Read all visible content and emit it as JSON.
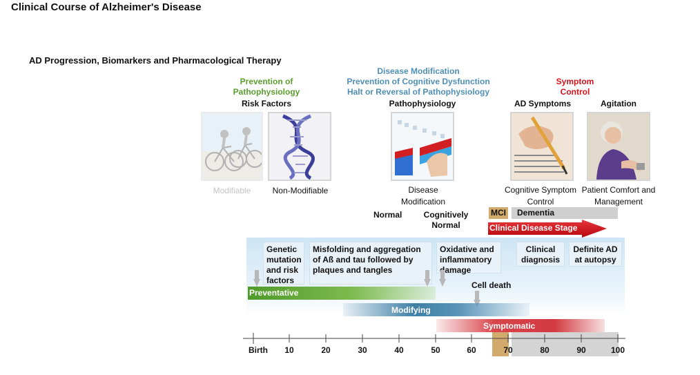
{
  "title": "Clinical Course of Alzheimer's Disease",
  "subtitle": "AD Progression, Biomarkers and Pharmacological Therapy",
  "colors": {
    "green": "#5a9e2f",
    "blue": "#4f8fb5",
    "red": "#d0121b",
    "mci": "#d2aa6c",
    "gray": "#cfcfcf"
  },
  "goals": {
    "prevention": "Prevention of Pathophysiology",
    "modification": [
      "Disease Modification",
      "Prevention of Cognitive Dysfunction",
      "Halt or Reversal of Pathophysiology"
    ],
    "symptom": "Symptom Control"
  },
  "headers": {
    "risk_factors": "Risk Factors",
    "pathophysiology": "Pathophysiology",
    "ad_symptoms": "AD Symptoms",
    "agitation": "Agitation"
  },
  "captions": {
    "modifiable": "Modifiable",
    "non_modifiable": "Non-Modifiable",
    "disease_modification": "Disease Modification",
    "cognitive_symptom_control": "Cognitive Symptom Control",
    "patient_comfort": "Patient Comfort and Management"
  },
  "images": {
    "cyclists": "cyclists-photo",
    "dna": "dna-helix-image",
    "lab": "lab-test-tubes-photo",
    "writing": "hand-writing-photo",
    "elderly": "elderly-woman-photo"
  },
  "stages": {
    "normal": "Normal",
    "cognitively_normal": "Cognitively Normal",
    "mci": "MCI",
    "dementia": "Dementia",
    "clinical_stage": "Clinical Disease Stage"
  },
  "phases": [
    "Genetic mutation and risk factors",
    "Misfolding and aggregation of Aß and tau followed by plaques and tangles",
    "Oxidative and inflammatory damage",
    "Clinical diagnosis",
    "Definite AD at autopsy"
  ],
  "cell_death": "Cell death",
  "therapy_bars": {
    "preventative": "Preventative",
    "modifying": "Modifying",
    "symptomatic": "Symptomatic"
  },
  "axis": {
    "ticks": [
      "Birth",
      "10",
      "20",
      "30",
      "40",
      "50",
      "60",
      "70",
      "80",
      "90",
      "100"
    ]
  }
}
